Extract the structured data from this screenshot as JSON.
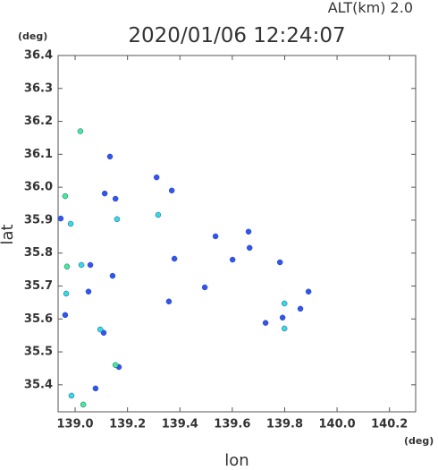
{
  "chart_data": {
    "type": "scatter",
    "title": "2020/01/06 12:24:07",
    "subtitle": "ALT(km)  2.0",
    "y_unit": "(deg)",
    "x_unit": "(deg)",
    "xlabel": "lon",
    "ylabel": "lat",
    "xlim": [
      138.935,
      140.3
    ],
    "ylim": [
      35.318,
      36.4
    ],
    "xticks": [
      {
        "value": 139,
        "label": "139.0"
      },
      139.2,
      139.4,
      139.6,
      139.8,
      {
        "value": 140,
        "label": "140.0"
      },
      140.2
    ],
    "yticks": [
      35.4,
      35.5,
      35.6,
      35.7,
      35.8,
      35.9,
      {
        "value": 36,
        "label": "36.0"
      },
      36.1,
      36.2,
      36.3,
      36.4
    ],
    "grid": false,
    "series": [
      {
        "color": "#3355ee",
        "x": [
          139.133,
          139.113,
          139.154,
          139.369,
          139.311,
          138.945,
          139.536,
          139.662,
          139.666,
          139.601,
          139.782,
          139.379,
          139.058,
          139.051,
          139.143,
          139.495,
          139.358,
          139.891,
          139.86,
          139.792,
          139.727,
          138.962,
          139.109,
          139.167,
          139.078
        ],
        "y": [
          36.093,
          35.981,
          35.965,
          35.99,
          36.03,
          35.905,
          35.851,
          35.865,
          35.816,
          35.78,
          35.772,
          35.783,
          35.764,
          35.683,
          35.731,
          35.696,
          35.653,
          35.683,
          35.631,
          35.604,
          35.588,
          35.612,
          35.558,
          35.454,
          35.389
        ]
      },
      {
        "color": "#33dddd",
        "x": [
          138.983,
          139.16,
          139.317,
          139.024,
          138.966,
          139.799,
          139.799,
          139.096,
          138.986
        ],
        "y": [
          35.889,
          35.903,
          35.916,
          35.764,
          35.677,
          35.647,
          35.571,
          35.568,
          35.367
        ]
      },
      {
        "color": "#44ee88",
        "x": [
          139.02,
          138.962,
          138.969,
          139.154,
          139.031
        ],
        "y": [
          36.17,
          35.973,
          35.759,
          35.46,
          35.34
        ]
      }
    ]
  }
}
